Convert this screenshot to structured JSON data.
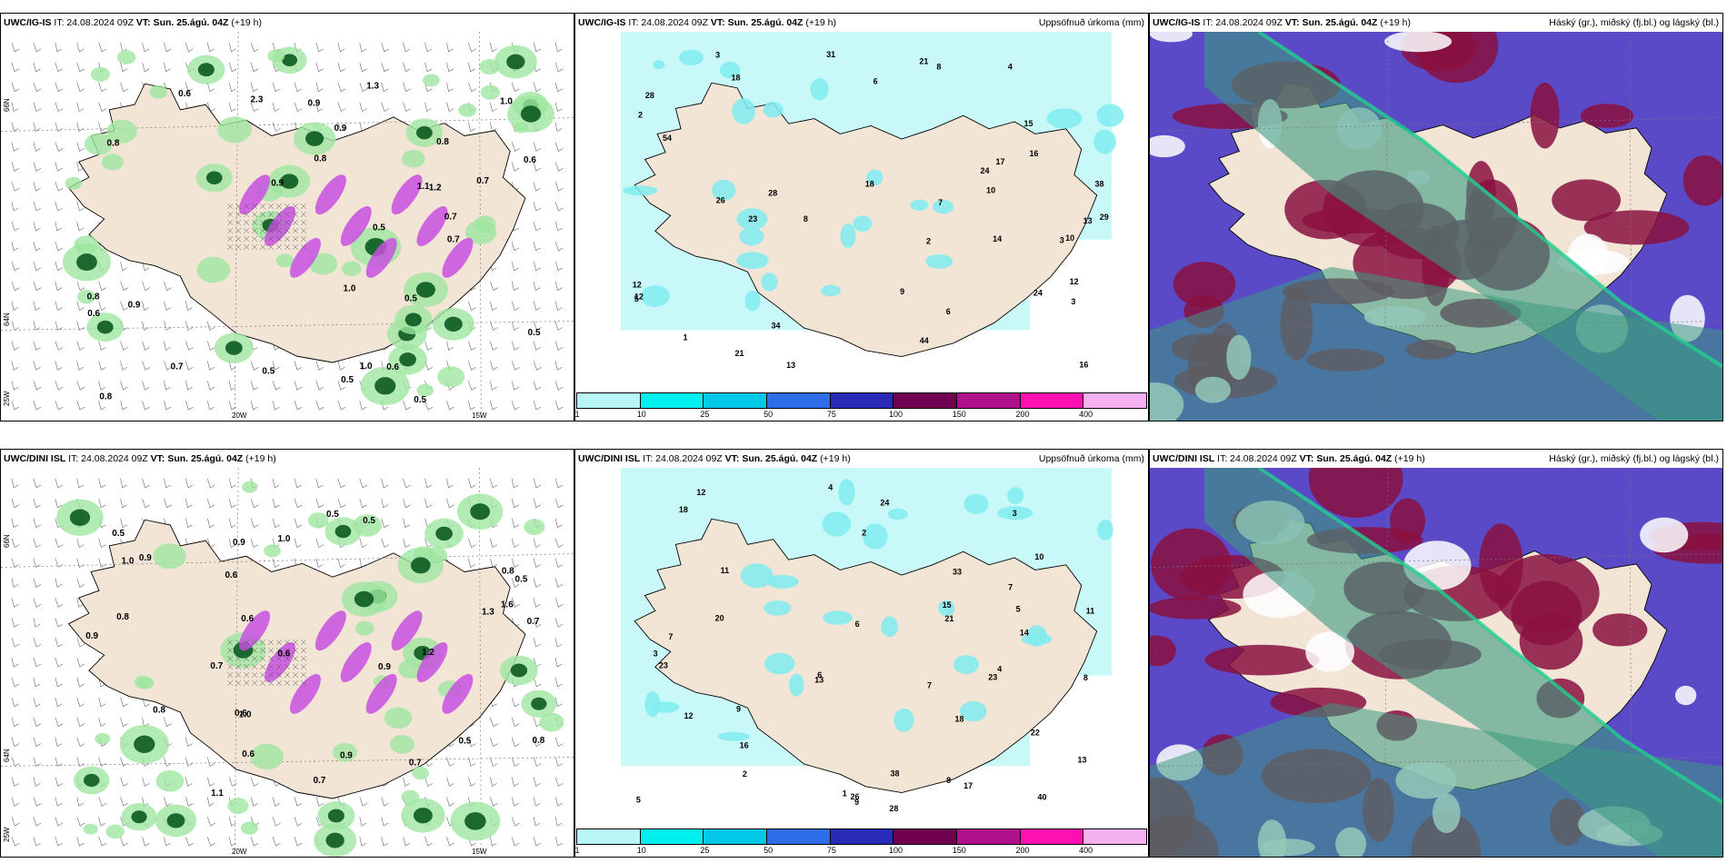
{
  "rows": [
    {
      "precip_panel": {
        "model": "UWC/IG-IS",
        "it": "IT: 24.08.2024 09Z",
        "vt": "VT: Sun. 25.ágú. 04Z",
        "lead": "(+19 h)"
      },
      "accum_panel": {
        "model": "UWC/IG-IS",
        "it": "IT: 24.08.2024 09Z",
        "vt": "VT: Sun. 25.ágú. 04Z",
        "lead": "(+19 h)",
        "title_right": "Uppsöfnuð úrkoma (mm)"
      },
      "cloud_panel": {
        "model": "UWC/IG-IS",
        "it": "IT: 24.08.2024 09Z",
        "vt": "VT: Sun. 25.ágú. 04Z",
        "lead": "(+19 h)",
        "title_right": "Háský (gr.), miðský (fj.bl.) og lágský (bl.)"
      },
      "precip_values": [
        "0.8",
        "0.7",
        "0.5",
        "1.0",
        "0.9",
        "0.6",
        "0.8",
        "0.7",
        "0.6",
        "0.8",
        "1.0",
        "0.5",
        "1.3",
        "0.7",
        "1.1",
        "0.9",
        "0.8",
        "0.5",
        "0.6",
        "0.7",
        "1.2",
        "0.9",
        "2.3",
        "0.9",
        "0.5",
        "0.6",
        "0.5",
        "1.0",
        "0.8",
        "0.5"
      ],
      "accum_values": [
        "44",
        "54",
        "29",
        "23",
        "21",
        "10",
        "14",
        "28",
        "16",
        "18",
        "15",
        "31",
        "17",
        "13",
        "8",
        "12",
        "24",
        "38",
        "34",
        "6",
        "10",
        "18",
        "21",
        "28",
        "12",
        "8",
        "3",
        "2",
        "1",
        "5",
        "9",
        "26",
        "24",
        "12",
        "3",
        "4",
        "7",
        "2",
        "3",
        "16",
        "6",
        "13"
      ]
    },
    {
      "precip_panel": {
        "model": "UWC/DINI ISL",
        "it": "IT: 24.08.2024 09Z",
        "vt": "VT: Sun. 25.ágú. 04Z",
        "lead": "(+19 h)"
      },
      "accum_panel": {
        "model": "UWC/DINI ISL",
        "it": "IT: 24.08.2024 09Z",
        "vt": "VT: Sun. 25.ágú. 04Z",
        "lead": "(+19 h)",
        "title_right": "Uppsöfnuð úrkoma (mm)"
      },
      "cloud_panel": {
        "model": "UWC/DINI ISL",
        "it": "IT: 24.08.2024 09Z",
        "vt": "VT: Sun. 25.ágú. 04Z",
        "lead": "(+19 h)",
        "title_right": "Háský (gr.), miðský (fj.bl.) og lágský (bl.)"
      },
      "precip_values": [
        "0.9",
        "0.6",
        "0.8",
        "0.7",
        "1.0",
        "0.5",
        "0.6",
        "0.8",
        "1.1",
        "0.9",
        "1.2",
        "0.5",
        "0.6",
        "0.7",
        "1.0",
        "0.9",
        "0.6",
        "1.3",
        "0.8",
        "0.7",
        "0.5",
        "0.9",
        "1.6",
        "0.5",
        "0.9",
        "0.7",
        "0.6",
        "0.8",
        "1.0",
        "0.5"
      ],
      "accum_values": [
        "38",
        "33",
        "24",
        "18",
        "14",
        "11",
        "23",
        "20",
        "13",
        "22",
        "7",
        "12",
        "17",
        "40",
        "28",
        "21",
        "10",
        "13",
        "23",
        "6",
        "8",
        "9",
        "5",
        "3",
        "2",
        "1",
        "4",
        "11",
        "7",
        "12",
        "15",
        "18",
        "26",
        "16",
        "8",
        "3",
        "2",
        "4",
        "6",
        "5",
        "9",
        "7"
      ]
    }
  ],
  "axis_labels": {
    "lat66": "66N",
    "lat64": "64N",
    "lon25": "25W",
    "lon20": "20W",
    "lon15": "15W"
  },
  "legend": {
    "labels": [
      "1",
      "10",
      "25",
      "50",
      "75",
      "100",
      "150",
      "200",
      "400"
    ],
    "colors": [
      "#b8f5f7",
      "#00f0f0",
      "#00c8e6",
      "#2d6ee8",
      "#2a2ab8",
      "#700050",
      "#b0108a",
      "#ff10b0",
      "#f4b0f0"
    ]
  },
  "colors": {
    "land": "#f2e5d6",
    "green_light": "#9fe6a0",
    "green_dark": "#0b5a20",
    "magenta": "#c850e0",
    "cyan_light": "#c8f8f8",
    "cyan": "#80ecf0",
    "purple": "#5a4ac8",
    "maroon": "#8a1040",
    "teal": "#3a9a80"
  }
}
